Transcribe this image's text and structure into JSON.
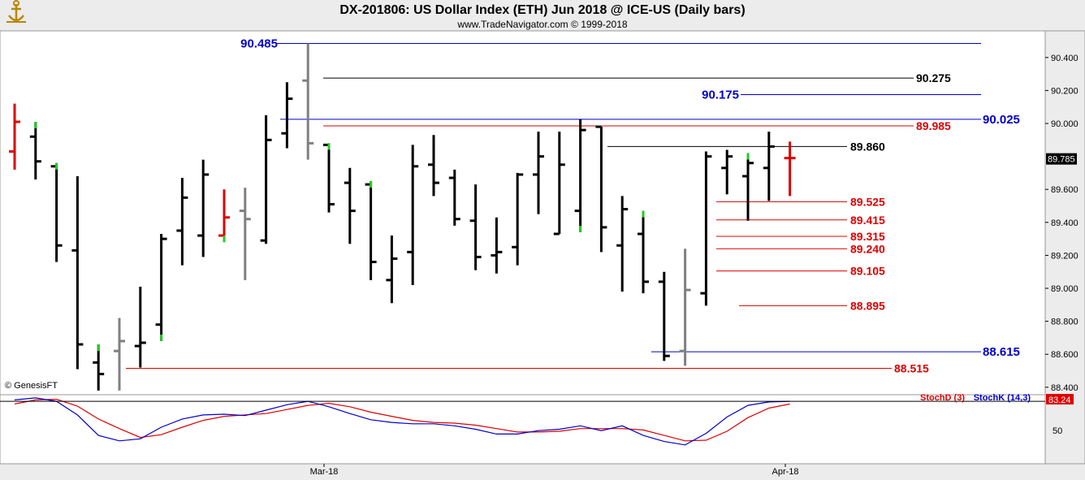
{
  "header": {
    "title": "DX-201806:  US Dollar Index (ETH) Jun 2018 @ ICE-US  (Daily bars)",
    "subtitle": "www.TradeNavigator.com © 1999-2018"
  },
  "watermark": "© GenesisFT",
  "logo_icon": "ship-anchor-icon",
  "x_axis": {
    "labels": [
      "Mar-18",
      "Apr-18"
    ]
  },
  "y_axis": {
    "ticks": [
      "90.400",
      "90.200",
      "90.000",
      "89.600",
      "89.400",
      "89.200",
      "89.000",
      "88.800",
      "88.600",
      "88.400"
    ],
    "ylim": [
      88.35,
      90.55
    ],
    "last_price_label": "89.785"
  },
  "levels": [
    {
      "label": "90.485",
      "value": 90.485,
      "color": "#0000cc"
    },
    {
      "label": "90.275",
      "value": 90.275,
      "color": "#000000"
    },
    {
      "label": "90.175",
      "value": 90.175,
      "color": "#0000cc"
    },
    {
      "label": "90.025",
      "value": 90.025,
      "color": "#0000cc"
    },
    {
      "label": "89.985",
      "value": 89.985,
      "color": "#dd0000"
    },
    {
      "label": "89.860",
      "value": 89.86,
      "color": "#000000"
    },
    {
      "label": "89.525",
      "value": 89.525,
      "color": "#dd0000"
    },
    {
      "label": "89.415",
      "value": 89.415,
      "color": "#dd0000"
    },
    {
      "label": "89.315",
      "value": 89.315,
      "color": "#dd0000"
    },
    {
      "label": "89.240",
      "value": 89.24,
      "color": "#dd0000"
    },
    {
      "label": "89.105",
      "value": 89.105,
      "color": "#dd0000"
    },
    {
      "label": "88.895",
      "value": 88.895,
      "color": "#dd0000"
    },
    {
      "label": "88.615",
      "value": 88.615,
      "color": "#0000cc"
    },
    {
      "label": "88.515",
      "value": 88.515,
      "color": "#dd0000"
    }
  ],
  "indicator": {
    "stochd_label": "StochD (3)",
    "stochk_label": "StochK (14,3)",
    "value_badge": "83.24",
    "tick_label": "50",
    "colors": {
      "stochd": "#dd0000",
      "stochk": "#0000cc"
    }
  },
  "colors": {
    "bar_default": "#000000",
    "bar_red": "#dd0000",
    "bar_gray": "#808080",
    "green_tick": "#22cc22",
    "blue_level": "#0000cc",
    "red_level": "#dd0000"
  },
  "chart_data": {
    "type": "ohlc",
    "title": "DX-201806:  US Dollar Index (ETH) Jun 2018 @ ICE-US  (Daily bars)",
    "bars": [
      {
        "h": 90.12,
        "l": 89.72,
        "o": 89.83,
        "c": 90.01,
        "color": "red",
        "green": null
      },
      {
        "h": 90.01,
        "l": 89.66,
        "o": 89.92,
        "c": 89.77,
        "color": "black",
        "green": "high"
      },
      {
        "h": 89.76,
        "l": 89.16,
        "o": 89.74,
        "c": 89.26,
        "color": "black",
        "green": "high"
      },
      {
        "h": 89.68,
        "l": 88.51,
        "o": 89.23,
        "c": 88.66,
        "color": "black",
        "green": null
      },
      {
        "h": 88.66,
        "l": 88.38,
        "o": 88.55,
        "c": 88.48,
        "color": "black",
        "green": "high"
      },
      {
        "h": 88.82,
        "l": 88.38,
        "o": 88.62,
        "c": 88.68,
        "color": "gray",
        "green": null
      },
      {
        "h": 89.01,
        "l": 88.52,
        "o": 88.65,
        "c": 88.67,
        "color": "black",
        "green": null
      },
      {
        "h": 89.33,
        "l": 88.68,
        "o": 88.78,
        "c": 89.3,
        "color": "black",
        "green": "low"
      },
      {
        "h": 89.67,
        "l": 89.14,
        "o": 89.35,
        "c": 89.55,
        "color": "black",
        "green": null
      },
      {
        "h": 89.78,
        "l": 89.19,
        "o": 89.32,
        "c": 89.69,
        "color": "black",
        "green": null
      },
      {
        "h": 89.6,
        "l": 89.28,
        "o": 89.32,
        "c": 89.43,
        "color": "red",
        "green": "low"
      },
      {
        "h": 89.61,
        "l": 89.05,
        "o": 89.47,
        "c": 89.42,
        "color": "gray",
        "green": null
      },
      {
        "h": 90.05,
        "l": 89.27,
        "o": 89.29,
        "c": 89.9,
        "color": "black",
        "green": null
      },
      {
        "h": 90.25,
        "l": 89.85,
        "o": 89.94,
        "c": 90.15,
        "color": "black",
        "green": null
      },
      {
        "h": 90.485,
        "l": 89.78,
        "o": 90.26,
        "c": 89.88,
        "color": "gray",
        "green": null
      },
      {
        "h": 89.88,
        "l": 89.46,
        "o": 89.87,
        "c": 89.51,
        "color": "black",
        "green": "high"
      },
      {
        "h": 89.73,
        "l": 89.27,
        "o": 89.64,
        "c": 89.47,
        "color": "black",
        "green": null
      },
      {
        "h": 89.65,
        "l": 89.05,
        "o": 89.63,
        "c": 89.16,
        "color": "black",
        "green": "high"
      },
      {
        "h": 89.32,
        "l": 88.91,
        "o": 89.05,
        "c": 89.18,
        "color": "black",
        "green": null
      },
      {
        "h": 89.87,
        "l": 89.02,
        "o": 89.22,
        "c": 89.74,
        "color": "black",
        "green": null
      },
      {
        "h": 89.93,
        "l": 89.56,
        "o": 89.75,
        "c": 89.64,
        "color": "black",
        "green": null
      },
      {
        "h": 89.72,
        "l": 89.38,
        "o": 89.67,
        "c": 89.42,
        "color": "black",
        "green": null
      },
      {
        "h": 89.63,
        "l": 89.11,
        "o": 89.41,
        "c": 89.19,
        "color": "black",
        "green": null
      },
      {
        "h": 89.43,
        "l": 89.09,
        "o": 89.2,
        "c": 89.22,
        "color": "black",
        "green": null
      },
      {
        "h": 89.7,
        "l": 89.14,
        "o": 89.25,
        "c": 89.69,
        "color": "black",
        "green": null
      },
      {
        "h": 89.95,
        "l": 89.45,
        "o": 89.69,
        "c": 89.8,
        "color": "black",
        "green": null
      },
      {
        "h": 89.95,
        "l": 89.33,
        "o": 89.33,
        "c": 89.75,
        "color": "black",
        "green": null
      },
      {
        "h": 90.025,
        "l": 89.34,
        "o": 89.47,
        "c": 89.96,
        "color": "black",
        "green": "low"
      },
      {
        "h": 89.98,
        "l": 89.22,
        "o": 89.98,
        "c": 89.37,
        "color": "black",
        "green": null
      },
      {
        "h": 89.56,
        "l": 88.98,
        "o": 89.26,
        "c": 89.48,
        "color": "black",
        "green": null
      },
      {
        "h": 89.47,
        "l": 88.97,
        "o": 89.33,
        "c": 89.04,
        "color": "black",
        "green": "high"
      },
      {
        "h": 89.1,
        "l": 88.56,
        "o": 89.04,
        "c": 88.59,
        "color": "black",
        "green": null
      },
      {
        "h": 89.24,
        "l": 88.53,
        "o": 88.62,
        "c": 88.99,
        "color": "gray",
        "green": null
      },
      {
        "h": 89.83,
        "l": 88.895,
        "o": 88.97,
        "c": 89.8,
        "color": "black",
        "green": null
      },
      {
        "h": 89.84,
        "l": 89.57,
        "o": 89.73,
        "c": 89.8,
        "color": "black",
        "green": null
      },
      {
        "h": 89.82,
        "l": 89.41,
        "o": 89.68,
        "c": 89.76,
        "color": "black",
        "green": "high"
      },
      {
        "h": 89.95,
        "l": 89.53,
        "o": 89.73,
        "c": 89.86,
        "color": "black",
        "green": null
      },
      {
        "h": 89.89,
        "l": 89.56,
        "o": 89.79,
        "c": 89.79,
        "color": "red",
        "green": null
      }
    ],
    "stoch": {
      "x": [
        0,
        1,
        2,
        3,
        4,
        5,
        6,
        7,
        8,
        9,
        10,
        11,
        12,
        13,
        14,
        15,
        16,
        17,
        18,
        19,
        20,
        21,
        22,
        23,
        24,
        25,
        26,
        27,
        28,
        29,
        30,
        31,
        32,
        33,
        34,
        35,
        36,
        37
      ],
      "k": [
        90,
        93,
        88,
        68,
        38,
        30,
        33,
        50,
        62,
        68,
        69,
        67,
        75,
        83,
        88,
        80,
        70,
        61,
        57,
        55,
        55,
        52,
        47,
        40,
        40,
        45,
        47,
        52,
        45,
        52,
        38,
        29,
        24,
        41,
        65,
        82,
        87,
        88
      ],
      "d": [
        84,
        90,
        91,
        81,
        62,
        48,
        35,
        39,
        50,
        60,
        66,
        68,
        70,
        76,
        82,
        85,
        80,
        72,
        66,
        60,
        57,
        56,
        53,
        48,
        43,
        43,
        44,
        48,
        48,
        48,
        46,
        38,
        30,
        31,
        44,
        64,
        78,
        84
      ]
    }
  }
}
